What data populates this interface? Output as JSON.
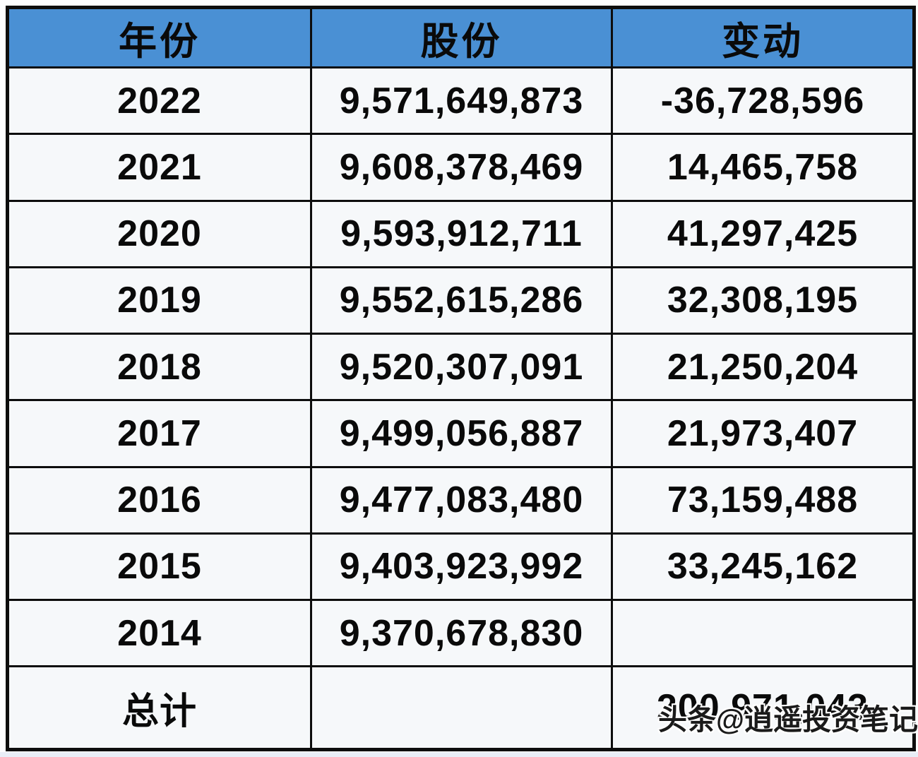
{
  "chart_data": {
    "type": "table",
    "title": "",
    "columns": [
      "年份",
      "股份",
      "变动"
    ],
    "rows": [
      [
        "2022",
        "9,571,649,873",
        "-36,728,596"
      ],
      [
        "2021",
        "9,608,378,469",
        "14,465,758"
      ],
      [
        "2020",
        "9,593,912,711",
        "41,297,425"
      ],
      [
        "2019",
        "9,552,615,286",
        "32,308,195"
      ],
      [
        "2018",
        "9,520,307,091",
        "21,250,204"
      ],
      [
        "2017",
        "9,499,056,887",
        "21,973,407"
      ],
      [
        "2016",
        "9,477,083,480",
        "73,159,488"
      ],
      [
        "2015",
        "9,403,923,992",
        "33,245,162"
      ],
      [
        "2014",
        "9,370,678,830",
        ""
      ],
      [
        "总计",
        "",
        "200,971,043"
      ]
    ]
  },
  "table": {
    "headers": [
      "年份",
      "股份",
      "变动"
    ],
    "rows": [
      {
        "year": "2022",
        "shares": "9,571,649,873",
        "change": "-36,728,596"
      },
      {
        "year": "2021",
        "shares": "9,608,378,469",
        "change": "14,465,758"
      },
      {
        "year": "2020",
        "shares": "9,593,912,711",
        "change": "41,297,425"
      },
      {
        "year": "2019",
        "shares": "9,552,615,286",
        "change": "32,308,195"
      },
      {
        "year": "2018",
        "shares": "9,520,307,091",
        "change": "21,250,204"
      },
      {
        "year": "2017",
        "shares": "9,499,056,887",
        "change": "21,973,407"
      },
      {
        "year": "2016",
        "shares": "9,477,083,480",
        "change": "73,159,488"
      },
      {
        "year": "2015",
        "shares": "9,403,923,992",
        "change": "33,245,162"
      },
      {
        "year": "2014",
        "shares": "9,370,678,830",
        "change": ""
      },
      {
        "year": "总计",
        "shares": "",
        "change": "200,971,043"
      }
    ]
  },
  "watermark": {
    "text": "头条@逍遥投资笔记"
  },
  "colors": {
    "header_bg": "#4a90d4",
    "border": "#0d0d0d",
    "cell_bg": "#f6f8fa",
    "text": "#0a0a0a",
    "watermark_text": "#1a1a1a",
    "watermark_outline": "#ffffff"
  }
}
